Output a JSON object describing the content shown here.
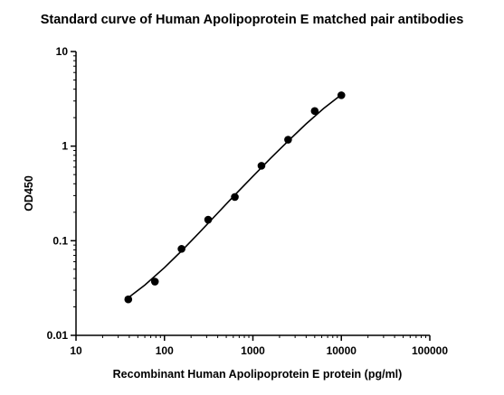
{
  "chart_data": {
    "type": "scatter",
    "title": "Standard curve of Human Apolipoprotein E matched pair antibodies",
    "xlabel": "Recombinant Human Apolipoprotein E protein (pg/ml)",
    "ylabel": "OD450",
    "x_scale": "log",
    "y_scale": "log",
    "xlim": [
      10,
      100000
    ],
    "ylim": [
      0.01,
      10
    ],
    "x_ticks": [
      "10",
      "100",
      "1000",
      "10000",
      "100000"
    ],
    "y_ticks": [
      "0.01",
      "0.1",
      "1",
      "10"
    ],
    "grid": false,
    "legend": "none",
    "marker_color": "#000000",
    "series": [
      {
        "x": [
          39,
          78,
          156,
          312,
          625,
          1250,
          2500,
          5000,
          10000
        ],
        "y": [
          0.024,
          0.037,
          0.082,
          0.167,
          0.29,
          0.62,
          1.17,
          2.35,
          3.45
        ]
      }
    ],
    "fit_curve": {
      "x": [
        39,
        60,
        100,
        156,
        250,
        400,
        625,
        1000,
        1600,
        2500,
        4000,
        6300,
        10000
      ],
      "y": [
        0.025,
        0.034,
        0.052,
        0.078,
        0.123,
        0.196,
        0.305,
        0.48,
        0.75,
        1.13,
        1.72,
        2.5,
        3.5
      ]
    }
  }
}
